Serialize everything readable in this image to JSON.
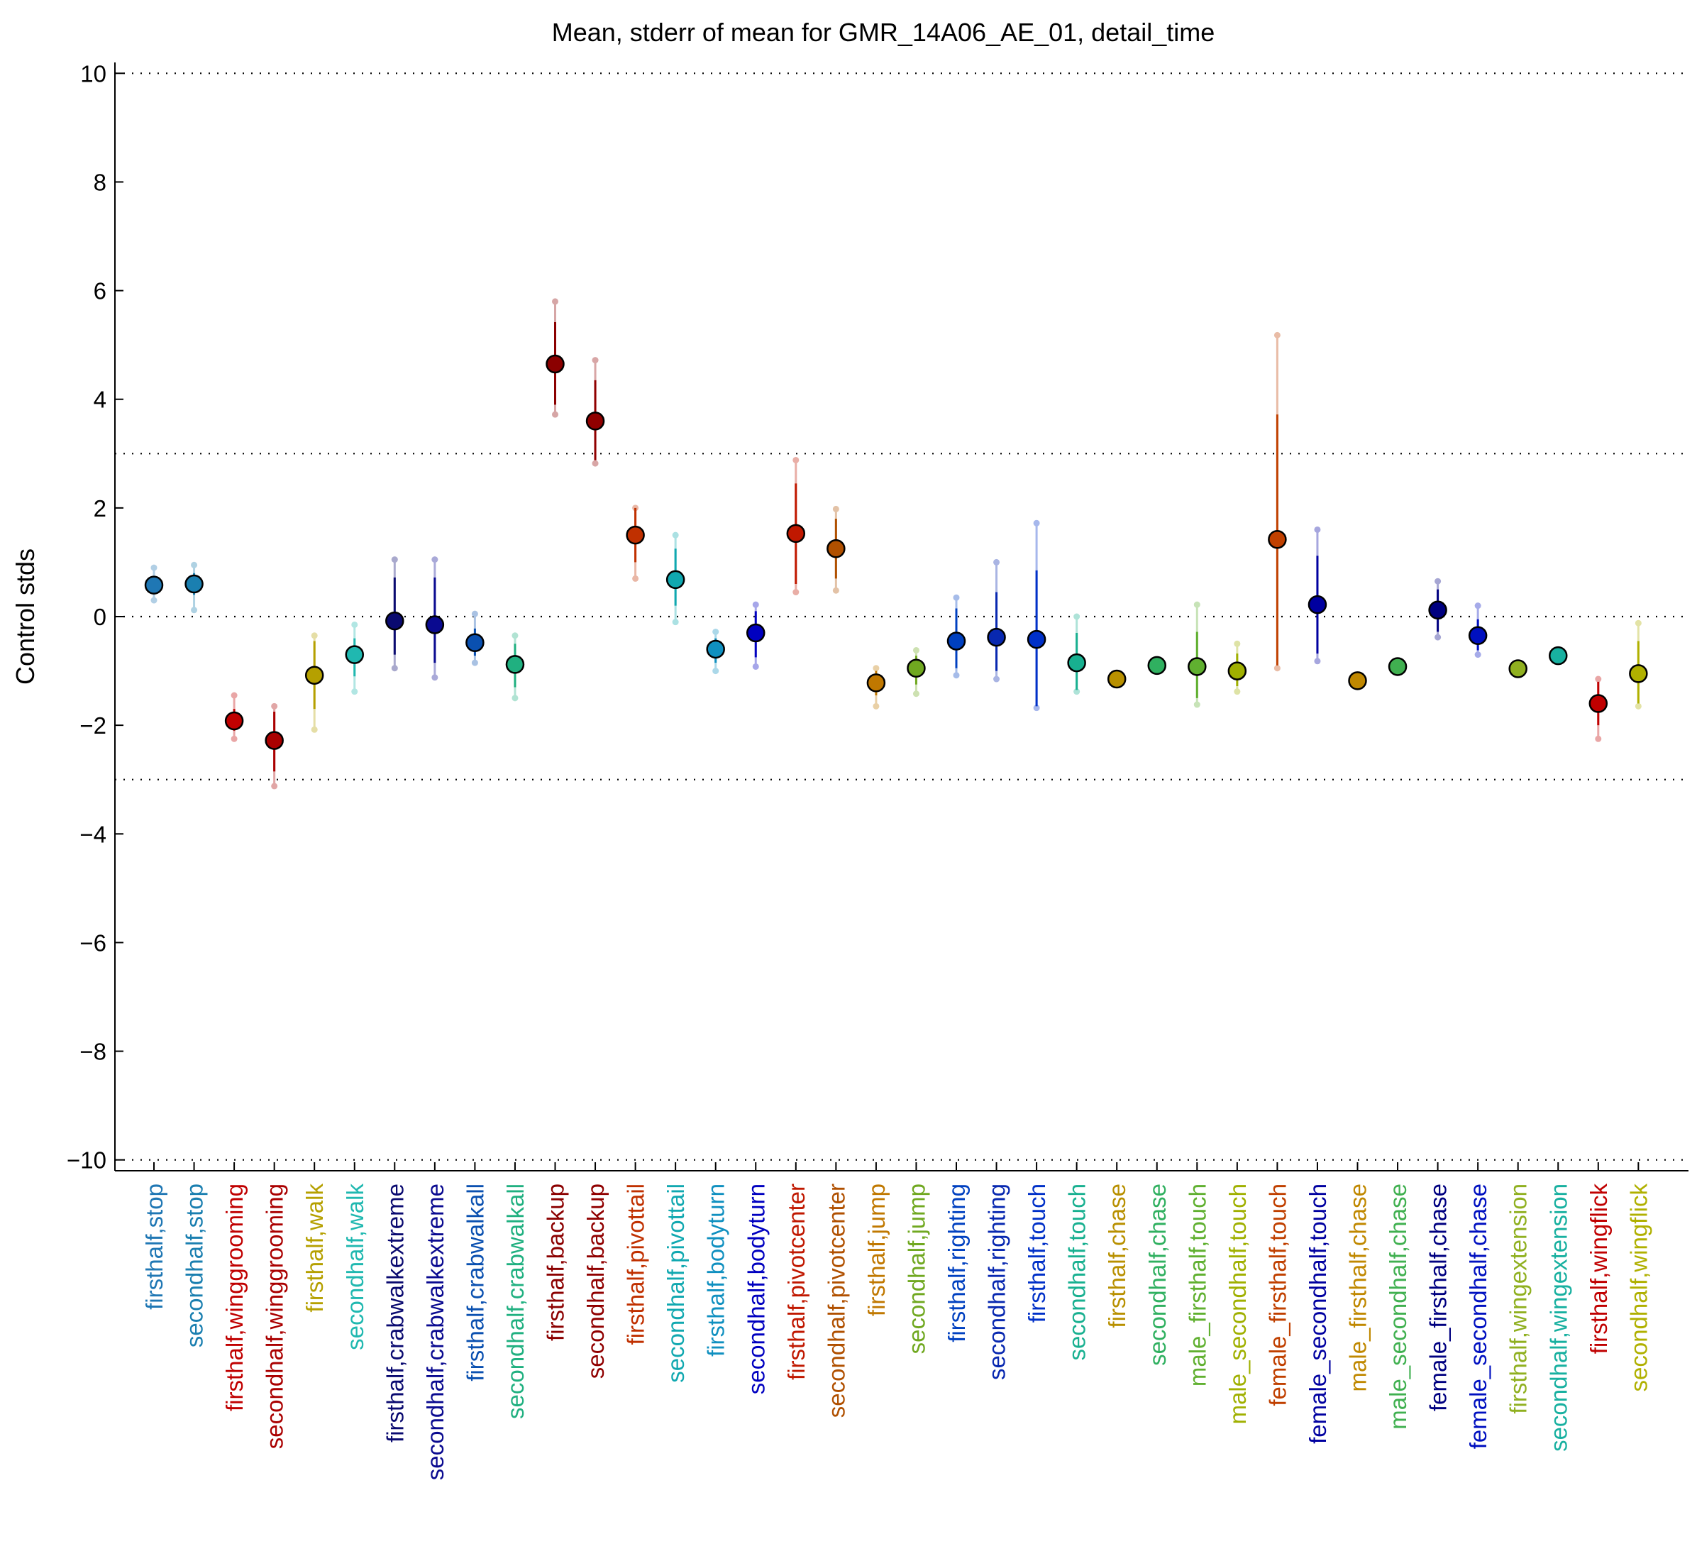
{
  "chart_data": {
    "type": "scatter",
    "title": "Mean, stderr of mean for GMR_14A06_AE_01, detail_time",
    "xlabel": "",
    "ylabel": "Control stds",
    "ylim": [
      -10.2,
      10.2
    ],
    "yticks": [
      -10,
      -8,
      -6,
      -4,
      -2,
      0,
      2,
      4,
      6,
      8,
      10
    ],
    "ytick_labels": [
      "−10",
      "−8",
      "−6",
      "−4",
      "−2",
      "0",
      "2",
      "4",
      "6",
      "8",
      "10"
    ],
    "reference_lines": [
      -10,
      -3,
      0,
      3,
      10
    ],
    "grid": false,
    "points": [
      {
        "label": "firsthalf,stop",
        "mean": 0.58,
        "se_low": 0.45,
        "se_high": 0.72,
        "ext_low": 0.3,
        "ext_high": 0.9,
        "color": "#1f77b4"
      },
      {
        "label": "secondhalf,stop",
        "mean": 0.6,
        "se_low": 0.4,
        "se_high": 0.8,
        "ext_low": 0.12,
        "ext_high": 0.95,
        "color": "#1a7fb0"
      },
      {
        "label": "firsthalf,winggrooming",
        "mean": -1.92,
        "se_low": -2.1,
        "se_high": -1.7,
        "ext_low": -2.25,
        "ext_high": -1.45,
        "color": "#c00000"
      },
      {
        "label": "secondhalf,winggrooming",
        "mean": -2.28,
        "se_low": -2.85,
        "se_high": -1.75,
        "ext_low": -3.12,
        "ext_high": -1.65,
        "color": "#aa0000"
      },
      {
        "label": "firsthalf,walk",
        "mean": -1.08,
        "se_low": -1.7,
        "se_high": -0.45,
        "ext_low": -2.08,
        "ext_high": -0.35,
        "color": "#b5a000"
      },
      {
        "label": "secondhalf,walk",
        "mean": -0.7,
        "se_low": -1.1,
        "se_high": -0.4,
        "ext_low": -1.38,
        "ext_high": -0.15,
        "color": "#20b8b0"
      },
      {
        "label": "firsthalf,crabwalkextreme",
        "mean": -0.08,
        "se_low": -0.7,
        "se_high": 0.72,
        "ext_low": -0.95,
        "ext_high": 1.05,
        "color": "#0a0a70"
      },
      {
        "label": "secondhalf,crabwalkextreme",
        "mean": -0.15,
        "se_low": -0.85,
        "se_high": 0.72,
        "ext_low": -1.12,
        "ext_high": 1.05,
        "color": "#0a0a90"
      },
      {
        "label": "firsthalf,crabwalkall",
        "mean": -0.48,
        "se_low": -0.72,
        "se_high": -0.22,
        "ext_low": -0.85,
        "ext_high": 0.05,
        "color": "#0a50b0"
      },
      {
        "label": "secondhalf,crabwalkall",
        "mean": -0.88,
        "se_low": -1.3,
        "se_high": -0.5,
        "ext_low": -1.5,
        "ext_high": -0.35,
        "color": "#20b080"
      },
      {
        "label": "firsthalf,backup",
        "mean": 4.65,
        "se_low": 3.9,
        "se_high": 5.42,
        "ext_low": 3.72,
        "ext_high": 5.8,
        "color": "#8b0000"
      },
      {
        "label": "secondhalf,backup",
        "mean": 3.6,
        "se_low": 2.88,
        "se_high": 4.35,
        "ext_low": 2.82,
        "ext_high": 4.72,
        "color": "#900000"
      },
      {
        "label": "firsthalf,pivottail",
        "mean": 1.5,
        "se_low": 1.0,
        "se_high": 2.0,
        "ext_low": 0.7,
        "ext_high": 2.0,
        "color": "#c03000"
      },
      {
        "label": "secondhalf,pivottail",
        "mean": 0.68,
        "se_low": 0.2,
        "se_high": 1.25,
        "ext_low": -0.1,
        "ext_high": 1.5,
        "color": "#10a8b0"
      },
      {
        "label": "firsthalf,bodyturn",
        "mean": -0.6,
        "se_low": -0.85,
        "se_high": -0.4,
        "ext_low": -1.0,
        "ext_high": -0.28,
        "color": "#1090c0"
      },
      {
        "label": "secondhalf,bodyturn",
        "mean": -0.3,
        "se_low": -0.75,
        "se_high": 0.1,
        "ext_low": -0.92,
        "ext_high": 0.22,
        "color": "#0000c0"
      },
      {
        "label": "firsthalf,pivotcenter",
        "mean": 1.53,
        "se_low": 0.6,
        "se_high": 2.45,
        "ext_low": 0.45,
        "ext_high": 2.88,
        "color": "#c01800"
      },
      {
        "label": "secondhalf,pivotcenter",
        "mean": 1.25,
        "se_low": 0.7,
        "se_high": 1.8,
        "ext_low": 0.48,
        "ext_high": 1.98,
        "color": "#b05000"
      },
      {
        "label": "firsthalf,jump",
        "mean": -1.22,
        "se_low": -1.45,
        "se_high": -1.0,
        "ext_low": -1.65,
        "ext_high": -0.95,
        "color": "#c07800"
      },
      {
        "label": "secondhalf,jump",
        "mean": -0.95,
        "se_low": -1.25,
        "se_high": -0.72,
        "ext_low": -1.42,
        "ext_high": -0.62,
        "color": "#70a820"
      },
      {
        "label": "firsthalf,righting",
        "mean": -0.45,
        "se_low": -0.95,
        "se_high": 0.15,
        "ext_low": -1.08,
        "ext_high": 0.35,
        "color": "#0040c0"
      },
      {
        "label": "secondhalf,righting",
        "mean": -0.38,
        "se_low": -1.0,
        "se_high": 0.45,
        "ext_low": -1.15,
        "ext_high": 1.0,
        "color": "#0828b0"
      },
      {
        "label": "firsthalf,touch",
        "mean": -0.42,
        "se_low": -1.65,
        "se_high": 0.85,
        "ext_low": -1.68,
        "ext_high": 1.72,
        "color": "#0030c8"
      },
      {
        "label": "secondhalf,touch",
        "mean": -0.85,
        "se_low": -1.35,
        "se_high": -0.3,
        "ext_low": -1.38,
        "ext_high": 0.0,
        "color": "#18b090"
      },
      {
        "label": "firsthalf,chase",
        "mean": -1.15,
        "se_low": -1.22,
        "se_high": -1.08,
        "ext_low": -1.25,
        "ext_high": -1.05,
        "color": "#b89000"
      },
      {
        "label": "secondhalf,chase",
        "mean": -0.9,
        "se_low": -0.98,
        "se_high": -0.83,
        "ext_low": -1.0,
        "ext_high": -0.8,
        "color": "#30b060"
      },
      {
        "label": "male_firsthalf,touch",
        "mean": -0.92,
        "se_low": -1.5,
        "se_high": -0.28,
        "ext_low": -1.62,
        "ext_high": 0.22,
        "color": "#60b030"
      },
      {
        "label": "male_secondhalf,touch",
        "mean": -1.0,
        "se_low": -1.28,
        "se_high": -0.68,
        "ext_low": -1.38,
        "ext_high": -0.5,
        "color": "#a0b000"
      },
      {
        "label": "female_firsthalf,touch",
        "mean": 1.42,
        "se_low": -0.9,
        "se_high": 3.72,
        "ext_low": -0.95,
        "ext_high": 5.18,
        "color": "#c04000"
      },
      {
        "label": "female_secondhalf,touch",
        "mean": 0.22,
        "se_low": -0.68,
        "se_high": 1.12,
        "ext_low": -0.82,
        "ext_high": 1.6,
        "color": "#0000a0"
      },
      {
        "label": "male_firsthalf,chase",
        "mean": -1.18,
        "se_low": -1.24,
        "se_high": -1.12,
        "ext_low": -1.26,
        "ext_high": -1.1,
        "color": "#c08800"
      },
      {
        "label": "male_secondhalf,chase",
        "mean": -0.92,
        "se_low": -0.98,
        "se_high": -0.86,
        "ext_low": -1.0,
        "ext_high": -0.84,
        "color": "#40b050"
      },
      {
        "label": "female_firsthalf,chase",
        "mean": 0.12,
        "se_low": -0.28,
        "se_high": 0.5,
        "ext_low": -0.38,
        "ext_high": 0.65,
        "color": "#000080"
      },
      {
        "label": "female_secondhalf,chase",
        "mean": -0.35,
        "se_low": -0.62,
        "se_high": -0.05,
        "ext_low": -0.7,
        "ext_high": 0.2,
        "color": "#0010c0"
      },
      {
        "label": "firsthalf,wingextension",
        "mean": -0.96,
        "se_low": -1.02,
        "se_high": -0.9,
        "ext_low": -1.04,
        "ext_high": -0.88,
        "color": "#90b020"
      },
      {
        "label": "secondhalf,wingextension",
        "mean": -0.72,
        "se_low": -0.78,
        "se_high": -0.66,
        "ext_low": -0.8,
        "ext_high": -0.64,
        "color": "#18b0a0"
      },
      {
        "label": "firsthalf,wingflick",
        "mean": -1.6,
        "se_low": -2.0,
        "se_high": -1.2,
        "ext_low": -2.25,
        "ext_high": -1.15,
        "color": "#c00000"
      },
      {
        "label": "secondhalf,wingflick",
        "mean": -1.05,
        "se_low": -1.6,
        "se_high": -0.45,
        "ext_low": -1.65,
        "ext_high": -0.12,
        "color": "#b0b000"
      }
    ]
  }
}
